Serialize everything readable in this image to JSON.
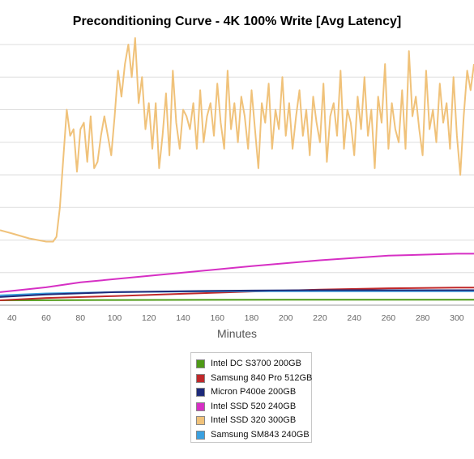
{
  "chart_data": {
    "type": "line",
    "title": "Preconditioning Curve - 4K 100% Write [Avg Latency]",
    "xlabel": "Minutes",
    "ylabel": "",
    "xlim": [
      33,
      310
    ],
    "ylim": [
      0,
      80
    ],
    "x_ticks": [
      40,
      60,
      80,
      100,
      120,
      140,
      160,
      180,
      200,
      220,
      240,
      260,
      280,
      300
    ],
    "grid": true,
    "legend_position": "bottom-center",
    "series": [
      {
        "name": "Intel DC S3700 200GB",
        "color": "#4e9a16",
        "points": [
          [
            33,
            1.5
          ],
          [
            100,
            1.6
          ],
          [
            200,
            1.7
          ],
          [
            310,
            1.7
          ]
        ]
      },
      {
        "name": "Samsung 840 Pro 512GB",
        "color": "#c0282a",
        "points": [
          [
            33,
            1.5
          ],
          [
            60,
            2.2
          ],
          [
            100,
            2.8
          ],
          [
            140,
            3.5
          ],
          [
            180,
            4.2
          ],
          [
            220,
            4.8
          ],
          [
            260,
            5.2
          ],
          [
            300,
            5.4
          ],
          [
            310,
            5.4
          ]
        ]
      },
      {
        "name": "Micron P400e 200GB",
        "color": "#1d2a7a",
        "points": [
          [
            33,
            2.5
          ],
          [
            60,
            3.3
          ],
          [
            100,
            4.0
          ],
          [
            140,
            4.3
          ],
          [
            180,
            4.5
          ],
          [
            220,
            4.6
          ],
          [
            260,
            4.6
          ],
          [
            310,
            4.6
          ]
        ]
      },
      {
        "name": "Intel SSD 520 240GB",
        "color": "#d62fc4",
        "points": [
          [
            33,
            4.0
          ],
          [
            60,
            5.5
          ],
          [
            80,
            7.0
          ],
          [
            100,
            8.0
          ],
          [
            140,
            10.0
          ],
          [
            180,
            12.0
          ],
          [
            220,
            13.8
          ],
          [
            260,
            15.2
          ],
          [
            300,
            15.8
          ],
          [
            310,
            15.8
          ]
        ]
      },
      {
        "name": "Intel SSD 320 300GB",
        "color": "#f0c27a",
        "points": [
          [
            33,
            23
          ],
          [
            40,
            22
          ],
          [
            50,
            20.5
          ],
          [
            60,
            19.5
          ],
          [
            64,
            19.5
          ],
          [
            66,
            21
          ],
          [
            68,
            30
          ],
          [
            70,
            45
          ],
          [
            72,
            60
          ],
          [
            74,
            52
          ],
          [
            76,
            54
          ],
          [
            78,
            41
          ],
          [
            80,
            54
          ],
          [
            82,
            56
          ],
          [
            84,
            44
          ],
          [
            86,
            58
          ],
          [
            88,
            42
          ],
          [
            90,
            44
          ],
          [
            92,
            52
          ],
          [
            94,
            58
          ],
          [
            96,
            52
          ],
          [
            98,
            46
          ],
          [
            100,
            58
          ],
          [
            102,
            72
          ],
          [
            104,
            64
          ],
          [
            106,
            74
          ],
          [
            108,
            80
          ],
          [
            110,
            70
          ],
          [
            112,
            82
          ],
          [
            114,
            62
          ],
          [
            116,
            70
          ],
          [
            118,
            54
          ],
          [
            120,
            62
          ],
          [
            122,
            48
          ],
          [
            124,
            62
          ],
          [
            126,
            42
          ],
          [
            128,
            52
          ],
          [
            130,
            65
          ],
          [
            132,
            46
          ],
          [
            134,
            72
          ],
          [
            136,
            56
          ],
          [
            138,
            48
          ],
          [
            140,
            60
          ],
          [
            142,
            58
          ],
          [
            144,
            54
          ],
          [
            146,
            62
          ],
          [
            148,
            48
          ],
          [
            150,
            66
          ],
          [
            152,
            50
          ],
          [
            154,
            58
          ],
          [
            156,
            62
          ],
          [
            158,
            52
          ],
          [
            160,
            68
          ],
          [
            162,
            56
          ],
          [
            164,
            48
          ],
          [
            166,
            72
          ],
          [
            168,
            54
          ],
          [
            170,
            62
          ],
          [
            172,
            50
          ],
          [
            174,
            64
          ],
          [
            176,
            58
          ],
          [
            178,
            48
          ],
          [
            180,
            66
          ],
          [
            182,
            54
          ],
          [
            184,
            42
          ],
          [
            186,
            62
          ],
          [
            188,
            56
          ],
          [
            190,
            68
          ],
          [
            192,
            48
          ],
          [
            194,
            60
          ],
          [
            196,
            54
          ],
          [
            198,
            70
          ],
          [
            200,
            52
          ],
          [
            202,
            62
          ],
          [
            204,
            48
          ],
          [
            206,
            58
          ],
          [
            208,
            66
          ],
          [
            210,
            52
          ],
          [
            212,
            60
          ],
          [
            214,
            46
          ],
          [
            216,
            64
          ],
          [
            218,
            56
          ],
          [
            220,
            50
          ],
          [
            222,
            68
          ],
          [
            224,
            44
          ],
          [
            226,
            58
          ],
          [
            228,
            62
          ],
          [
            230,
            52
          ],
          [
            232,
            72
          ],
          [
            234,
            48
          ],
          [
            236,
            60
          ],
          [
            238,
            56
          ],
          [
            240,
            46
          ],
          [
            242,
            64
          ],
          [
            244,
            54
          ],
          [
            246,
            70
          ],
          [
            248,
            52
          ],
          [
            250,
            60
          ],
          [
            252,
            42
          ],
          [
            254,
            64
          ],
          [
            256,
            56
          ],
          [
            258,
            74
          ],
          [
            260,
            48
          ],
          [
            262,
            62
          ],
          [
            264,
            54
          ],
          [
            266,
            50
          ],
          [
            268,
            66
          ],
          [
            270,
            48
          ],
          [
            272,
            78
          ],
          [
            274,
            58
          ],
          [
            276,
            64
          ],
          [
            278,
            54
          ],
          [
            280,
            46
          ],
          [
            282,
            72
          ],
          [
            284,
            54
          ],
          [
            286,
            60
          ],
          [
            288,
            50
          ],
          [
            290,
            68
          ],
          [
            292,
            56
          ],
          [
            294,
            62
          ],
          [
            296,
            48
          ],
          [
            298,
            70
          ],
          [
            300,
            52
          ],
          [
            302,
            40
          ],
          [
            304,
            58
          ],
          [
            306,
            72
          ],
          [
            308,
            66
          ],
          [
            310,
            74
          ]
        ]
      },
      {
        "name": "Samsung SM843 240GB",
        "color": "#3aa0e0",
        "points": [
          [
            33,
            3.0
          ],
          [
            60,
            3.6
          ],
          [
            100,
            4.0
          ],
          [
            140,
            4.2
          ],
          [
            180,
            4.3
          ],
          [
            220,
            4.3
          ],
          [
            260,
            4.3
          ],
          [
            310,
            4.3
          ]
        ]
      }
    ]
  }
}
